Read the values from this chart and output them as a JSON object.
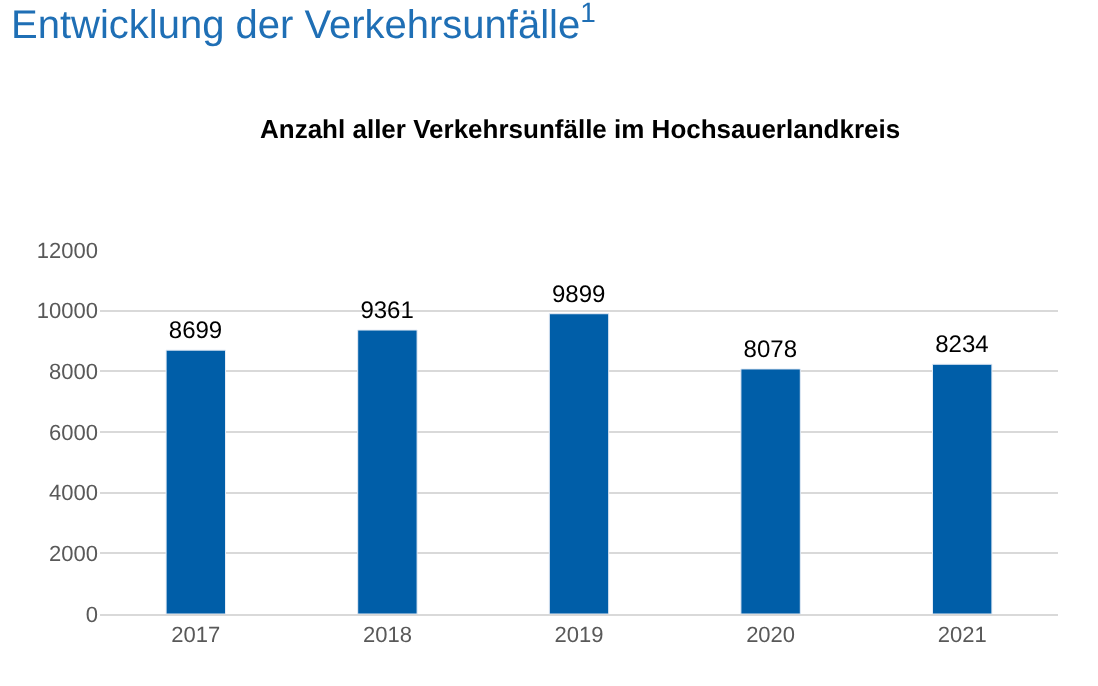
{
  "chart_data": {
    "type": "bar",
    "title": "Entwicklung der Verkehrsunfälle$^{1}$",
    "subtitle": "Anzahl aller Verkehrsunfälle im Hochsauerlandkreis",
    "categories": [
      "2017",
      "2018",
      "2019",
      "2020",
      "2021"
    ],
    "values": [
      8699,
      9361,
      9899,
      8078,
      8234
    ],
    "color": "#005ea8",
    "ylim": [
      0,
      12000
    ],
    "yticks": [
      0,
      2000,
      4000,
      6000,
      8000,
      10000,
      12000
    ],
    "grid": "y",
    "data_labels": true,
    "legend": false
  }
}
